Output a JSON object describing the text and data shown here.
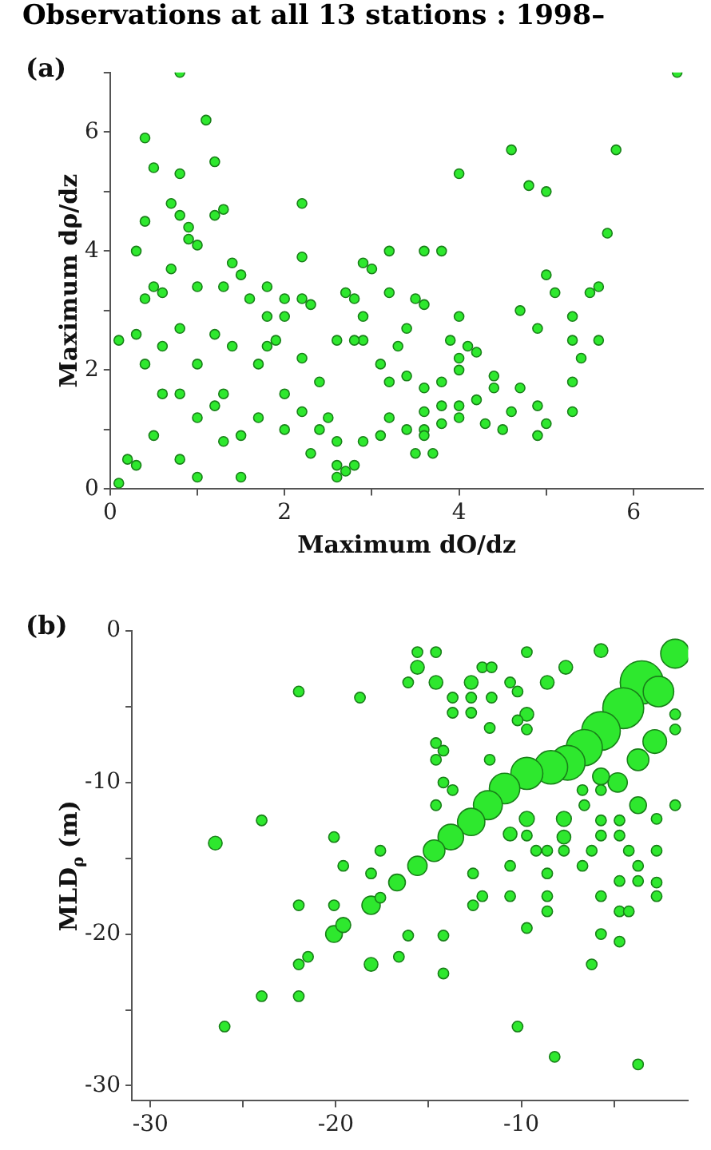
{
  "chart_data": [
    {
      "type": "scatter",
      "title": "Observations at all 13 stations : 1998–",
      "xlabel": "Maximum dO/dz",
      "ylabel": "Maximum dρ/dz",
      "annotations": [
        "(a)"
      ],
      "xlim": [
        0,
        6.8
      ],
      "ylim": [
        0,
        7
      ],
      "xticks": [
        0,
        {
          "value": 1,
          "label": null
        },
        2,
        {
          "value": 3,
          "label": null
        },
        4,
        {
          "value": 5,
          "label": null
        },
        6
      ],
      "yticks": [
        0,
        {
          "value": 1,
          "label": null
        },
        2,
        {
          "value": 3,
          "label": null
        },
        4,
        {
          "value": 5,
          "label": null
        },
        6,
        {
          "value": 7,
          "label": null
        }
      ],
      "series": [
        {
          "color": "#2ee82e",
          "x": [
            0.8,
            6.5,
            1.1,
            0.4,
            1.2,
            0.5,
            0.8,
            4.6,
            5.8,
            4.0,
            4.8,
            5.0,
            5.7,
            2.2,
            0.7,
            1.3,
            1.2,
            0.8,
            0.4,
            0.9,
            0.9,
            1.0,
            0.3,
            2.2,
            3.2,
            3.6,
            3.8,
            2.9,
            3.0,
            1.4,
            0.7,
            5.0,
            5.1,
            5.5,
            5.6,
            4.7,
            5.3,
            4.9,
            5.3,
            5.6,
            5.4,
            5.3,
            5.3,
            5.0,
            4.9,
            4.9,
            4.7,
            4.4,
            4.4,
            4.2,
            4.3,
            4.5,
            4.6,
            4.0,
            4.0,
            4.0,
            4.1,
            4.2,
            3.9,
            4.0,
            4.0,
            3.8,
            3.8,
            3.6,
            3.6,
            3.6,
            3.7,
            3.5,
            3.4,
            3.2,
            3.2,
            3.5,
            3.6,
            3.4,
            3.3,
            3.1,
            3.2,
            3.4,
            3.6,
            3.8,
            2.9,
            2.8,
            2.7,
            2.9,
            2.8,
            2.6,
            2.4,
            2.5,
            2.6,
            2.6,
            2.7,
            2.6,
            2.8,
            2.9,
            3.1,
            2.3,
            2.2,
            2.3,
            2.0,
            1.8,
            1.9,
            2.2,
            2.0,
            1.6,
            1.8,
            1.5,
            1.3,
            1.0,
            0.5,
            0.4,
            0.6,
            0.1,
            0.3,
            0.4,
            0.6,
            1.0,
            1.3,
            1.7,
            2.0,
            1.3,
            0.8,
            0.3,
            0.1,
            1.0,
            0.6,
            1.7,
            2.0,
            1.2,
            1.5,
            1.0,
            0.5,
            0.2,
            2.4,
            2.2,
            0.8,
            1.4,
            1.8,
            0.8,
            1.2,
            1.5
          ],
          "values": [
            7.0,
            7.0,
            6.2,
            5.9,
            5.5,
            5.4,
            5.3,
            5.7,
            5.7,
            5.3,
            5.1,
            5.0,
            4.3,
            4.8,
            4.8,
            4.7,
            4.6,
            4.6,
            4.5,
            4.4,
            4.2,
            4.1,
            4.0,
            3.9,
            4.0,
            4.0,
            4.0,
            3.8,
            3.7,
            3.8,
            3.7,
            3.6,
            3.3,
            3.3,
            3.4,
            3.0,
            2.9,
            2.7,
            2.5,
            2.5,
            2.2,
            1.8,
            1.3,
            1.1,
            0.9,
            1.4,
            1.7,
            1.9,
            1.7,
            1.5,
            1.1,
            1.0,
            1.3,
            2.9,
            2.2,
            2.0,
            2.4,
            2.3,
            2.5,
            1.4,
            1.2,
            1.4,
            1.1,
            1.3,
            1.0,
            0.9,
            0.6,
            0.6,
            1.0,
            1.2,
            3.3,
            3.2,
            3.1,
            2.7,
            2.4,
            2.1,
            1.8,
            1.9,
            1.7,
            1.8,
            2.9,
            3.2,
            3.3,
            2.5,
            2.5,
            2.5,
            1.8,
            1.2,
            0.8,
            0.4,
            0.3,
            0.2,
            0.4,
            0.8,
            0.9,
            0.6,
            3.2,
            3.1,
            2.9,
            2.9,
            2.5,
            2.2,
            3.2,
            3.2,
            3.4,
            3.6,
            3.4,
            3.4,
            3.4,
            3.2,
            3.3,
            2.5,
            2.6,
            2.1,
            1.6,
            2.1,
            1.6,
            1.2,
            1.0,
            0.8,
            0.5,
            0.4,
            0.1,
            1.2,
            2.4,
            2.1,
            1.6,
            2.6,
            0.2,
            0.2,
            0.9,
            0.5,
            1.0,
            1.3,
            2.7,
            2.4,
            2.4,
            1.6,
            1.4,
            0.9
          ]
        }
      ]
    },
    {
      "type": "bubble",
      "ylabel": "MLD$_{ρ}$ (m)",
      "annotations": [
        "(b)"
      ],
      "xlim": [
        -31,
        -1
      ],
      "ylim": [
        -31,
        0
      ],
      "xticks": [
        -30,
        {
          "value": -25,
          "label": null
        },
        -20,
        {
          "value": -15,
          "label": null
        },
        -10,
        {
          "value": -5,
          "label": null
        }
      ],
      "yticks": [
        0,
        {
          "value": -5,
          "label": null
        },
        -10,
        {
          "value": -15,
          "label": null
        },
        -20,
        {
          "value": -25,
          "label": null
        },
        -30
      ],
      "series": [
        {
          "color": "#2ee82e",
          "x": [
            -1.7,
            -3.5,
            -4.5,
            -5.7,
            -6.6,
            -7.5,
            -8.4,
            -9.7,
            -10.9,
            -11.8,
            -12.7,
            -13.8,
            -14.7,
            -15.6,
            -16.7,
            -18.1,
            -20.1,
            -19.6,
            -18.1,
            -26.5,
            -2.6,
            -2.8,
            -3.7,
            -3.7,
            -4.8,
            -5.7,
            -7.7,
            -7.7,
            -9.7,
            -10.6,
            -5.7,
            -15.6,
            -14.6,
            -15.6,
            -14.6,
            -16.1,
            -12.7,
            -9.7,
            -12.1,
            -11.6,
            -10.6,
            -8.6,
            -7.6,
            -13.7,
            -13.7,
            -12.7,
            -12.7,
            -11.6,
            -11.7,
            -14.6,
            -14.6,
            -14.2,
            -14.2,
            -13.7,
            -14.6,
            -11.7,
            -10.2,
            -9.7,
            -9.7,
            -10.2,
            -18.7,
            -22.0,
            -24.0,
            -20.1,
            -19.6,
            -18.1,
            -17.6,
            -22.0,
            -20.1,
            -21.5,
            -22.0,
            -24.0,
            -22.0,
            -26.0,
            -17.6,
            -16.1,
            -16.6,
            -14.2,
            -14.2,
            -12.6,
            -12.1,
            -12.6,
            -10.6,
            -10.6,
            -9.7,
            -8.6,
            -8.6,
            -8.6,
            -9.7,
            -9.2,
            -8.6,
            -7.7,
            -6.7,
            -6.2,
            -5.7,
            -5.7,
            -4.7,
            -4.7,
            -4.2,
            -3.7,
            -2.7,
            -2.7,
            -2.7,
            -3.7,
            -4.7,
            -5.7,
            -4.7,
            -4.2,
            -5.7,
            -4.7,
            -6.2,
            -10.2,
            -8.2,
            -3.7,
            -1.7,
            -1.7,
            -1.7,
            -2.7,
            -6.6,
            -5.7,
            -6.7
          ],
          "values": [
            -1.5,
            -3.4,
            -5.1,
            -6.6,
            -7.7,
            -8.7,
            -9.0,
            -9.4,
            -10.4,
            -11.5,
            -12.6,
            -13.6,
            -14.5,
            -15.5,
            -16.6,
            -18.1,
            -20.0,
            -19.4,
            -22.0,
            -14.0,
            -4.0,
            -7.3,
            -8.5,
            -11.5,
            -10.0,
            -9.6,
            -12.4,
            -13.6,
            -12.4,
            -13.4,
            -1.3,
            -1.4,
            -1.4,
            -2.4,
            -3.4,
            -3.4,
            -3.4,
            -1.4,
            -2.4,
            -2.4,
            -3.4,
            -3.4,
            -2.4,
            -4.4,
            -5.4,
            -4.4,
            -5.4,
            -4.4,
            -6.4,
            -7.4,
            -8.5,
            -7.9,
            -10.0,
            -10.5,
            -11.5,
            -8.5,
            -4.0,
            -5.5,
            -6.5,
            -5.9,
            -4.4,
            -4.0,
            -12.5,
            -13.6,
            -15.5,
            -16.0,
            -14.5,
            -18.1,
            -18.1,
            -21.5,
            -22.0,
            -24.1,
            -24.1,
            -26.1,
            -17.6,
            -20.1,
            -21.5,
            -20.1,
            -22.6,
            -16.0,
            -17.5,
            -18.1,
            -15.5,
            -17.5,
            -19.6,
            -17.5,
            -18.5,
            -16.0,
            -13.5,
            -14.5,
            -14.5,
            -14.5,
            -15.5,
            -14.5,
            -13.5,
            -12.5,
            -12.5,
            -13.5,
            -14.5,
            -15.5,
            -14.5,
            -16.6,
            -17.5,
            -16.5,
            -16.5,
            -17.5,
            -18.5,
            -18.5,
            -20.0,
            -20.5,
            -22.0,
            -26.1,
            -28.1,
            -28.6,
            -11.5,
            -5.5,
            -6.5,
            -12.4,
            -11.5,
            -10.5,
            -10.5
          ],
          "sizes": [
            0.45,
            1,
            0.9,
            0.8,
            0.7,
            0.65,
            0.6,
            0.55,
            0.5,
            0.45,
            0.4,
            0.35,
            0.25,
            0.2,
            0.15,
            0.18,
            0.15,
            0.12,
            0.1,
            0.1,
            0.5,
            0.3,
            0.25,
            0.15,
            0.2,
            0.15,
            0.12,
            0.1,
            0.12,
            0.1,
            0.1,
            0.06,
            0.06,
            0.1,
            0.1,
            0.06,
            0.1,
            0.06,
            0.06,
            0.06,
            0.06,
            0.1,
            0.1,
            0.06,
            0.06,
            0.06,
            0.06,
            0.06,
            0.06,
            0.06,
            0.06,
            0.06,
            0.06,
            0.06,
            0.06,
            0.06,
            0.06,
            0.1,
            0.06,
            0.06,
            0.06,
            0.06,
            0.06,
            0.06,
            0.06,
            0.06,
            0.06,
            0.06,
            0.06,
            0.06,
            0.06,
            0.06,
            0.06,
            0.06,
            0.06,
            0.06,
            0.06,
            0.06,
            0.06,
            0.06,
            0.06,
            0.06,
            0.06,
            0.06,
            0.06,
            0.06,
            0.06,
            0.06,
            0.06,
            0.06,
            0.06,
            0.06,
            0.06,
            0.06,
            0.06,
            0.06,
            0.06,
            0.06,
            0.06,
            0.06,
            0.06,
            0.06,
            0.06,
            0.06,
            0.06,
            0.06,
            0.06,
            0.06,
            0.06,
            0.06,
            0.06,
            0.06,
            0.06,
            0.06,
            0.06,
            0.06,
            0.06,
            0.06,
            0.06,
            0.06,
            0.06
          ]
        }
      ]
    }
  ]
}
